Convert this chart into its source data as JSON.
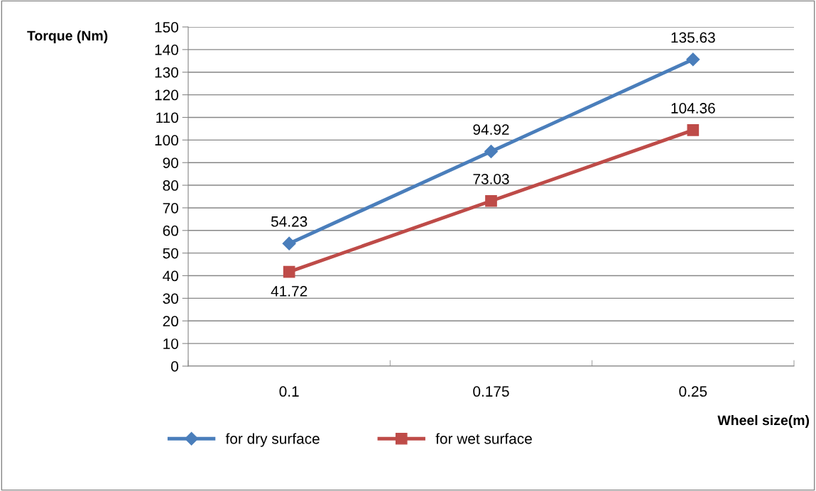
{
  "chart_data": {
    "type": "line",
    "xlabel": "Wheel size(m)",
    "ylabel": "Torque (Nm)",
    "categories": [
      "0.1",
      "0.175",
      "0.25"
    ],
    "series": [
      {
        "name": "for dry surface",
        "color": "#4a7ebb",
        "marker": "diamond",
        "values": [
          54.23,
          94.92,
          135.63
        ]
      },
      {
        "name": "for wet surface",
        "color": "#be4b48",
        "marker": "square",
        "values": [
          41.72,
          73.03,
          104.36
        ]
      }
    ],
    "ylim": [
      0,
      150
    ],
    "yticks": [
      0,
      10,
      20,
      30,
      40,
      50,
      60,
      70,
      80,
      90,
      100,
      110,
      120,
      130,
      140,
      150
    ],
    "grid": "y",
    "legend": "bottom",
    "data_labels": true
  }
}
